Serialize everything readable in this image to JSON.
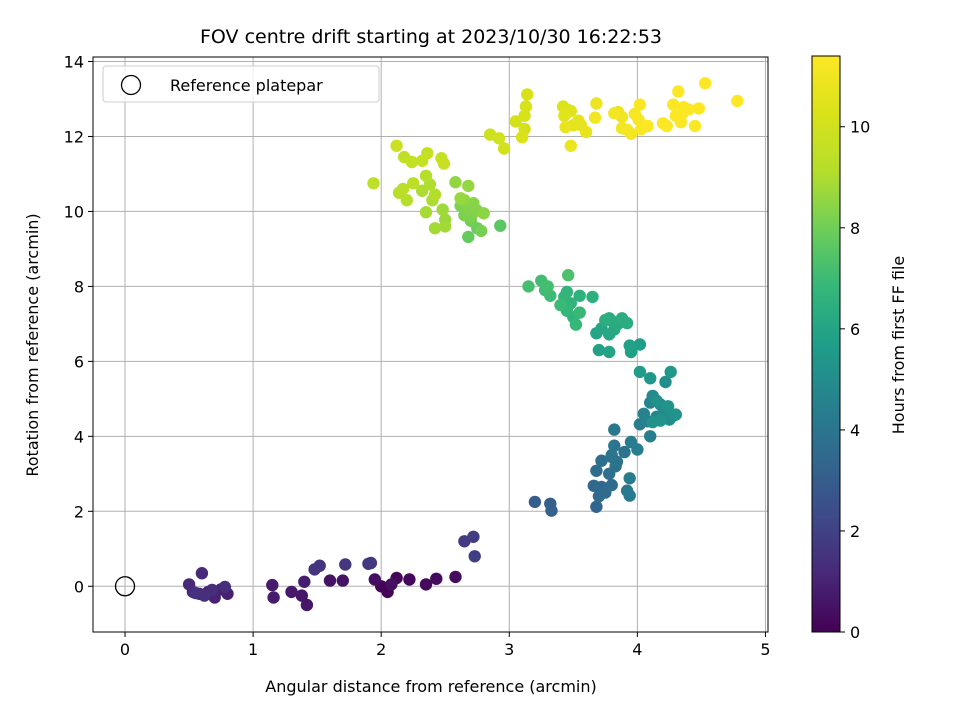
{
  "chart_data": {
    "type": "scatter",
    "title": "FOV centre drift starting at 2023/10/30 16:22:53",
    "xlabel": "Angular distance from reference (arcmin)",
    "ylabel": "Rotation from reference (arcmin)",
    "xlim": [
      -0.25,
      5.02
    ],
    "ylim": [
      -1.22,
      14.12
    ],
    "xticks": [
      0,
      1,
      2,
      3,
      4,
      5
    ],
    "yticks": [
      0,
      2,
      4,
      6,
      8,
      10,
      12,
      14
    ],
    "grid": true,
    "colormap": "viridis",
    "colorbar": {
      "label": "Hours from first FF file",
      "range": [
        0,
        11.4
      ],
      "ticks": [
        0,
        2,
        4,
        6,
        8,
        10
      ]
    },
    "legend": {
      "position": "top-left",
      "entries": [
        "Reference platepar"
      ]
    },
    "reference_point": {
      "x": 0,
      "y": 0,
      "marker": "open circle",
      "color": "#000000"
    },
    "series": [
      {
        "points": [
          [
            2.05,
            -0.15,
            0.05
          ],
          [
            2.0,
            0.0,
            0.1
          ],
          [
            2.12,
            0.22,
            0.15
          ],
          [
            2.22,
            0.18,
            0.2
          ],
          [
            2.35,
            0.05,
            0.25
          ],
          [
            2.43,
            0.2,
            0.3
          ],
          [
            2.58,
            0.25,
            0.35
          ],
          [
            1.95,
            0.18,
            0.4
          ],
          [
            2.08,
            0.05,
            0.45
          ],
          [
            1.6,
            0.15,
            0.5
          ],
          [
            1.7,
            0.15,
            0.55
          ],
          [
            1.42,
            -0.5,
            0.6
          ],
          [
            1.38,
            -0.25,
            0.65
          ],
          [
            1.3,
            -0.15,
            0.7
          ],
          [
            1.15,
            0.03,
            0.75
          ],
          [
            1.16,
            -0.3,
            0.8
          ],
          [
            1.4,
            0.12,
            0.85
          ],
          [
            0.8,
            -0.2,
            0.9
          ],
          [
            0.75,
            -0.08,
            0.95
          ],
          [
            0.7,
            -0.3,
            1.0
          ],
          [
            0.65,
            -0.15,
            1.05
          ],
          [
            0.58,
            -0.2,
            1.1
          ],
          [
            0.53,
            -0.15,
            1.15
          ],
          [
            0.5,
            0.05,
            1.2
          ],
          [
            0.6,
            0.35,
            1.25
          ],
          [
            0.68,
            -0.1,
            1.3
          ],
          [
            0.78,
            -0.02,
            1.35
          ],
          [
            0.62,
            -0.25,
            1.4
          ],
          [
            0.55,
            -0.18,
            1.45
          ],
          [
            1.48,
            0.45,
            1.5
          ],
          [
            1.52,
            0.55,
            1.55
          ],
          [
            1.72,
            0.58,
            1.6
          ],
          [
            1.92,
            0.62,
            1.65
          ],
          [
            1.9,
            0.6,
            1.7
          ],
          [
            2.65,
            1.2,
            1.75
          ],
          [
            2.72,
            1.32,
            1.8
          ],
          [
            2.73,
            0.8,
            1.9
          ],
          [
            3.2,
            2.25,
            3.0
          ],
          [
            3.32,
            2.2,
            3.1
          ],
          [
            3.33,
            2.02,
            3.2
          ],
          [
            3.68,
            2.12,
            3.3
          ],
          [
            3.72,
            2.65,
            3.4
          ],
          [
            3.66,
            2.68,
            3.45
          ],
          [
            3.7,
            2.4,
            3.5
          ],
          [
            3.75,
            2.5,
            3.55
          ],
          [
            3.8,
            2.7,
            3.6
          ],
          [
            3.68,
            3.08,
            3.65
          ],
          [
            3.72,
            3.35,
            3.7
          ],
          [
            3.78,
            3.0,
            3.75
          ],
          [
            3.83,
            3.2,
            3.8
          ],
          [
            3.8,
            3.45,
            3.85
          ],
          [
            3.84,
            3.32,
            3.9
          ],
          [
            3.9,
            3.58,
            3.95
          ],
          [
            3.82,
            3.75,
            4.0
          ],
          [
            3.8,
            3.5,
            4.05
          ],
          [
            3.82,
            4.18,
            4.1
          ],
          [
            3.92,
            2.55,
            4.15
          ],
          [
            3.94,
            2.42,
            4.2
          ],
          [
            3.94,
            2.88,
            4.25
          ],
          [
            3.95,
            3.85,
            4.3
          ],
          [
            4.0,
            3.65,
            4.35
          ],
          [
            4.02,
            4.32,
            4.4
          ],
          [
            4.1,
            4.0,
            4.45
          ],
          [
            4.08,
            4.4,
            4.5
          ],
          [
            4.05,
            4.6,
            4.55
          ],
          [
            4.1,
            4.9,
            4.6
          ],
          [
            4.15,
            4.52,
            4.7
          ],
          [
            4.12,
            5.08,
            4.8
          ],
          [
            4.18,
            4.85,
            4.85
          ],
          [
            4.2,
            4.6,
            4.9
          ],
          [
            4.22,
            4.72,
            4.95
          ],
          [
            4.25,
            4.45,
            5.0
          ],
          [
            4.28,
            4.55,
            5.05
          ],
          [
            4.22,
            5.45,
            5.1
          ],
          [
            4.15,
            4.95,
            5.15
          ],
          [
            4.12,
            4.38,
            5.2
          ],
          [
            4.18,
            4.42,
            5.25
          ],
          [
            4.24,
            4.8,
            5.3
          ],
          [
            4.3,
            4.58,
            5.35
          ],
          [
            4.1,
            5.55,
            5.4
          ],
          [
            4.26,
            5.72,
            5.45
          ],
          [
            4.02,
            5.72,
            5.6
          ],
          [
            4.02,
            6.45,
            5.7
          ],
          [
            3.95,
            6.25,
            5.8
          ],
          [
            3.94,
            6.42,
            5.85
          ],
          [
            3.7,
            6.3,
            5.9
          ],
          [
            3.78,
            6.25,
            5.95
          ],
          [
            3.68,
            6.75,
            6.0
          ],
          [
            3.72,
            6.88,
            6.05
          ],
          [
            3.78,
            6.72,
            6.1
          ],
          [
            3.82,
            6.85,
            6.15
          ],
          [
            3.8,
            7.08,
            6.2
          ],
          [
            3.85,
            7.0,
            6.25
          ],
          [
            3.78,
            7.15,
            6.3
          ],
          [
            3.92,
            7.02,
            6.35
          ],
          [
            3.88,
            7.15,
            6.4
          ],
          [
            3.75,
            7.1,
            6.45
          ],
          [
            3.65,
            7.72,
            6.5
          ],
          [
            3.55,
            7.75,
            6.55
          ],
          [
            3.5,
            7.18,
            6.6
          ],
          [
            3.48,
            7.55,
            6.65
          ],
          [
            3.45,
            7.85,
            6.7
          ],
          [
            3.43,
            7.72,
            6.75
          ],
          [
            3.45,
            7.35,
            6.8
          ],
          [
            3.52,
            6.98,
            6.85
          ],
          [
            3.55,
            7.3,
            6.9
          ],
          [
            3.4,
            7.5,
            6.95
          ],
          [
            3.32,
            7.75,
            7.0
          ],
          [
            3.28,
            7.9,
            7.05
          ],
          [
            3.25,
            8.15,
            7.1
          ],
          [
            3.3,
            8.0,
            7.15
          ],
          [
            3.15,
            8.0,
            7.2
          ],
          [
            3.46,
            8.3,
            7.3
          ],
          [
            2.93,
            9.62,
            7.6
          ],
          [
            2.68,
            9.32,
            7.8
          ],
          [
            2.75,
            9.55,
            7.9
          ],
          [
            2.7,
            9.75,
            8.0
          ],
          [
            2.78,
            9.48,
            8.1
          ],
          [
            2.65,
            9.9,
            8.15
          ],
          [
            2.7,
            9.85,
            8.2
          ],
          [
            2.62,
            10.15,
            8.25
          ],
          [
            2.68,
            10.05,
            8.3
          ],
          [
            2.75,
            10.02,
            8.35
          ],
          [
            2.72,
            10.22,
            8.4
          ],
          [
            2.8,
            9.95,
            8.45
          ],
          [
            2.65,
            10.3,
            8.5
          ],
          [
            2.58,
            10.78,
            8.55
          ],
          [
            2.68,
            10.68,
            8.6
          ],
          [
            2.62,
            10.35,
            8.65
          ],
          [
            2.5,
            9.78,
            8.7
          ],
          [
            2.48,
            10.05,
            8.75
          ],
          [
            2.5,
            9.6,
            8.8
          ],
          [
            2.42,
            9.55,
            8.85
          ],
          [
            2.35,
            9.98,
            8.9
          ],
          [
            2.4,
            10.3,
            8.95
          ],
          [
            2.32,
            10.55,
            9.0
          ],
          [
            2.38,
            10.72,
            9.05
          ],
          [
            2.42,
            10.45,
            9.1
          ],
          [
            2.35,
            10.95,
            9.15
          ],
          [
            2.2,
            10.3,
            9.2
          ],
          [
            2.14,
            10.5,
            9.25
          ],
          [
            2.17,
            10.6,
            9.3
          ],
          [
            2.25,
            10.75,
            9.35
          ],
          [
            1.94,
            10.75,
            9.4
          ],
          [
            2.18,
            11.45,
            9.5
          ],
          [
            2.24,
            11.32,
            9.55
          ],
          [
            2.32,
            11.35,
            9.6
          ],
          [
            2.36,
            11.55,
            9.65
          ],
          [
            2.47,
            11.42,
            9.7
          ],
          [
            2.49,
            11.28,
            9.75
          ],
          [
            2.12,
            11.75,
            9.8
          ],
          [
            2.85,
            12.05,
            9.9
          ],
          [
            2.92,
            11.95,
            10.0
          ],
          [
            2.96,
            11.68,
            10.05
          ],
          [
            3.05,
            12.4,
            10.1
          ],
          [
            3.12,
            12.2,
            10.15
          ],
          [
            3.12,
            12.55,
            10.2
          ],
          [
            3.13,
            12.8,
            10.25
          ],
          [
            3.14,
            13.12,
            10.3
          ],
          [
            3.1,
            11.98,
            10.35
          ],
          [
            3.42,
            12.8,
            10.4
          ],
          [
            3.45,
            12.72,
            10.45
          ],
          [
            3.48,
            12.68,
            10.5
          ],
          [
            3.43,
            12.55,
            10.55
          ],
          [
            3.5,
            12.3,
            10.6
          ],
          [
            3.54,
            12.42,
            10.65
          ],
          [
            3.56,
            12.3,
            10.7
          ],
          [
            3.6,
            12.12,
            10.75
          ],
          [
            3.44,
            12.25,
            10.8
          ],
          [
            3.48,
            11.75,
            10.85
          ],
          [
            3.68,
            12.88,
            10.9
          ],
          [
            3.85,
            12.65,
            10.95
          ],
          [
            3.88,
            12.52,
            11.0
          ],
          [
            3.88,
            12.22,
            11.05
          ],
          [
            3.92,
            12.18,
            11.1
          ],
          [
            3.95,
            12.07,
            11.15
          ],
          [
            3.98,
            12.6,
            11.2
          ],
          [
            4.01,
            12.45,
            11.25
          ],
          [
            4.03,
            12.2,
            11.3
          ],
          [
            4.08,
            12.28,
            11.35
          ],
          [
            3.67,
            12.5,
            11.05
          ],
          [
            3.82,
            12.62,
            11.1
          ],
          [
            4.2,
            12.35,
            11.35
          ],
          [
            4.23,
            12.28,
            11.35
          ],
          [
            4.28,
            12.85,
            11.38
          ],
          [
            4.3,
            12.55,
            11.35
          ],
          [
            4.34,
            12.38,
            11.35
          ],
          [
            4.35,
            12.6,
            11.38
          ],
          [
            4.36,
            12.78,
            11.38
          ],
          [
            4.4,
            12.72,
            11.38
          ],
          [
            4.32,
            13.2,
            11.38
          ],
          [
            4.45,
            12.28,
            11.38
          ],
          [
            4.53,
            13.42,
            11.4
          ],
          [
            4.48,
            12.75,
            11.4
          ],
          [
            4.02,
            12.85,
            11.3
          ],
          [
            4.78,
            12.95,
            11.4
          ]
        ]
      }
    ]
  }
}
